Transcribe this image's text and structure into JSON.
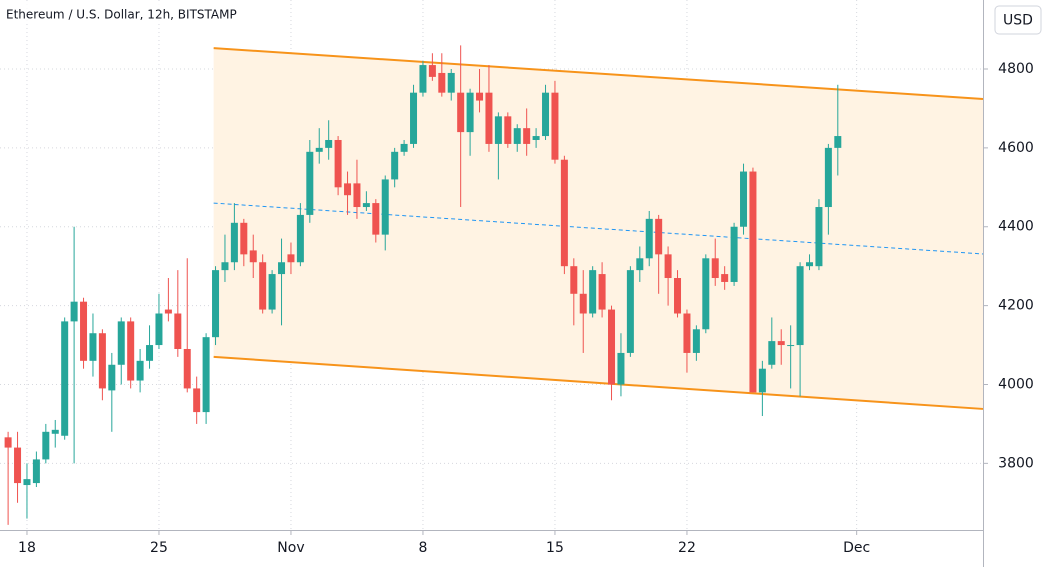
{
  "chart_data": {
    "type": "candlestick",
    "title": "Ethereum / U.S. Dollar, 12h, BITSTAMP",
    "y_axis_label": "USD",
    "x": [
      17,
      17.5,
      18,
      18.5,
      19,
      19.5,
      20,
      20.5,
      21,
      21.5,
      22,
      22.5,
      23,
      23.5,
      24,
      24.5,
      25,
      25.5,
      26,
      26.5,
      27,
      27.5,
      28,
      28.5,
      29,
      29.5,
      30,
      30.5,
      31,
      31.5,
      32,
      32.5,
      33,
      33.5,
      34,
      34.5,
      35,
      35.5,
      36,
      36.5,
      37,
      37.5,
      38,
      38.5,
      39,
      39.5,
      40,
      40.5,
      41,
      41.5,
      42,
      42.5,
      43,
      43.5,
      44,
      44.5,
      45,
      45.5,
      46,
      46.5,
      47,
      47.5,
      48,
      48.5,
      49,
      49.5,
      50,
      50.5,
      51,
      51.5,
      52,
      52.5,
      53,
      53.5,
      54,
      54.5,
      55,
      55.5,
      56,
      56.5,
      57,
      57.5,
      58,
      58.5,
      59,
      59.5,
      60,
      60.5,
      61
    ],
    "open": [
      3866,
      3840,
      3745,
      3750,
      3810,
      3875,
      3870,
      4160,
      4210,
      4060,
      4130,
      3985,
      4050,
      4160,
      4010,
      4060,
      4100,
      4190,
      4180,
      4090,
      3990,
      3930,
      4120,
      4290,
      4310,
      4410,
      4340,
      4310,
      4190,
      4280,
      4330,
      4310,
      4430,
      4590,
      4600,
      4620,
      4510,
      4510,
      4450,
      4460,
      4380,
      4520,
      4590,
      4610,
      4740,
      4810,
      4790,
      4740,
      4740,
      4640,
      4740,
      4740,
      4610,
      4680,
      4610,
      4650,
      4620,
      4630,
      4740,
      4570,
      4300,
      4230,
      4180,
      4280,
      4190,
      4000,
      4080,
      4290,
      4320,
      4420,
      4330,
      4270,
      4180,
      4080,
      4140,
      4320,
      4280,
      4260,
      4400,
      4540,
      3980,
      4050,
      4110,
      4100,
      4100,
      4300,
      4300,
      4450,
      4600
    ],
    "high": [
      3880,
      3880,
      3800,
      3830,
      3900,
      3910,
      4170,
      4400,
      4220,
      4180,
      4140,
      4080,
      4170,
      4170,
      4090,
      4150,
      4230,
      4270,
      4290,
      4320,
      4020,
      4130,
      4300,
      4380,
      4460,
      4420,
      4380,
      4330,
      4290,
      4370,
      4360,
      4460,
      4620,
      4650,
      4670,
      4630,
      4540,
      4570,
      4490,
      4470,
      4530,
      4600,
      4620,
      4760,
      4820,
      4840,
      4840,
      4800,
      4860,
      4750,
      4800,
      4810,
      4690,
      4690,
      4660,
      4700,
      4650,
      4760,
      4770,
      4580,
      4320,
      4290,
      4300,
      4310,
      4200,
      4130,
      4300,
      4350,
      4440,
      4430,
      4350,
      4290,
      4190,
      4150,
      4330,
      4370,
      4300,
      4410,
      4560,
      4550,
      4060,
      4170,
      4140,
      4150,
      4310,
      4330,
      4470,
      4610,
      4760
    ],
    "low": [
      3644,
      3700,
      3660,
      3740,
      3800,
      3840,
      3860,
      3800,
      4040,
      4020,
      3960,
      3880,
      4000,
      3990,
      3980,
      4040,
      4090,
      4160,
      4070,
      3980,
      3900,
      3900,
      4100,
      4260,
      4290,
      4300,
      4270,
      4180,
      4180,
      4150,
      4280,
      4300,
      4410,
      4560,
      4570,
      4480,
      4430,
      4420,
      4440,
      4360,
      4340,
      4500,
      4580,
      4600,
      4730,
      4770,
      4730,
      4720,
      4450,
      4580,
      4690,
      4590,
      4520,
      4600,
      4590,
      4580,
      4600,
      4620,
      4560,
      4280,
      4150,
      4080,
      4170,
      4170,
      3960,
      3970,
      4070,
      4260,
      4300,
      4230,
      4200,
      4170,
      4030,
      4060,
      4130,
      4250,
      4240,
      4250,
      4380,
      3980,
      3920,
      4040,
      4050,
      3990,
      3970,
      4290,
      4290,
      4380,
      4530
    ],
    "close": [
      3840,
      3750,
      3760,
      3810,
      3880,
      3885,
      4160,
      4210,
      4060,
      4130,
      3990,
      4050,
      4160,
      4010,
      4060,
      4100,
      4180,
      4180,
      4090,
      3990,
      3930,
      4120,
      4290,
      4310,
      4410,
      4330,
      4310,
      4190,
      4280,
      4310,
      4310,
      4430,
      4590,
      4600,
      4620,
      4500,
      4480,
      4450,
      4460,
      4380,
      4520,
      4590,
      4610,
      4740,
      4810,
      4780,
      4740,
      4790,
      4640,
      4740,
      4720,
      4610,
      4680,
      4610,
      4650,
      4610,
      4630,
      4740,
      4570,
      4300,
      4230,
      4180,
      4290,
      4190,
      4000,
      4080,
      4290,
      4320,
      4420,
      4330,
      4270,
      4180,
      4080,
      4140,
      4320,
      4270,
      4260,
      4400,
      4540,
      3980,
      4040,
      4110,
      4100,
      4100,
      4300,
      4310,
      4450,
      4600,
      4630
    ],
    "up_color": "#26a69a",
    "down_color": "#ef5350",
    "channel": {
      "color": "#f7931a",
      "fill": "#fff3e3",
      "upper": {
        "x": [
          27.9,
          68.7
        ],
        "y": [
          4853,
          4724
        ]
      },
      "lower": {
        "x": [
          27.9,
          68.7
        ],
        "y": [
          4070,
          3938
        ]
      },
      "middle": {
        "x": [
          27.9,
          68.7
        ],
        "y": [
          4460,
          4331
        ],
        "color": "#2196f3"
      }
    },
    "xlim": [
      16.57,
      68.7
    ],
    "ylim": [
      3631,
      4975
    ],
    "xticks": [
      18,
      25,
      {
        "value": 32,
        "label": "Nov"
      },
      {
        "value": 39,
        "label": "8"
      },
      {
        "value": 46,
        "label": "15"
      },
      {
        "value": 53,
        "label": "22"
      },
      {
        "value": 62,
        "label": "Dec"
      }
    ],
    "yticks": [
      3800,
      4000,
      4200,
      4400,
      4600,
      4800
    ],
    "grid": true
  }
}
